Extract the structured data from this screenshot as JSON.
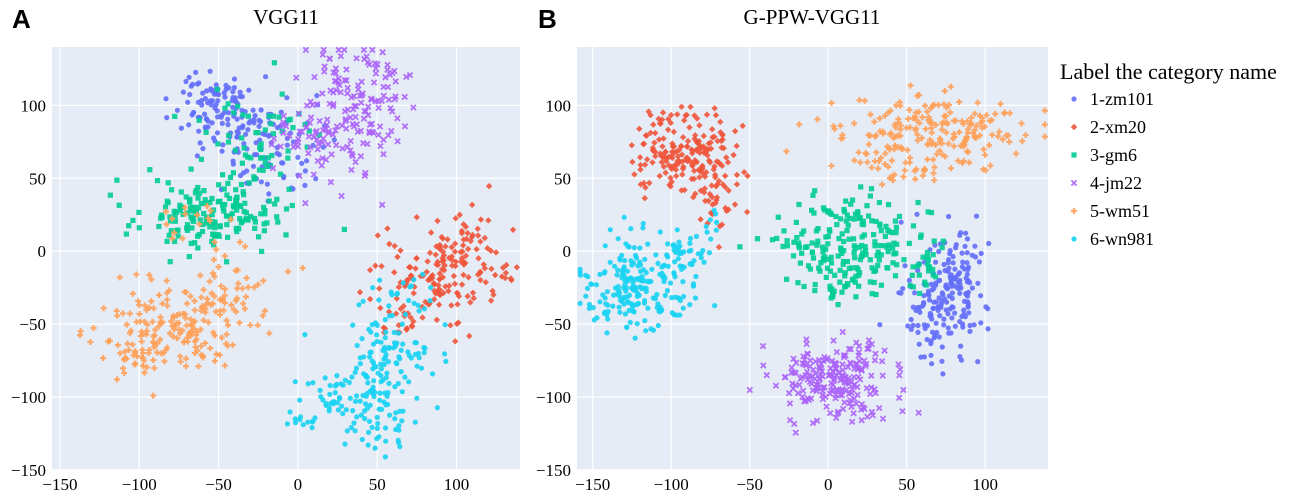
{
  "figure": {
    "background": "#ffffff",
    "plot_bg": "#e5ecf6",
    "grid_color": "#ffffff"
  },
  "legend": {
    "title": "Label the category name",
    "placement": "top-right",
    "items": [
      {
        "label": "1-zm101",
        "color": "#636efa",
        "marker": "circle"
      },
      {
        "label": "2-xm20",
        "color": "#ef553b",
        "marker": "diamond"
      },
      {
        "label": "3-gm6",
        "color": "#00cc96",
        "marker": "square"
      },
      {
        "label": "4-jm22",
        "color": "#ab63fa",
        "marker": "x"
      },
      {
        "label": "5-wm51",
        "color": "#ffa15a",
        "marker": "cross"
      },
      {
        "label": "6-wn981",
        "color": "#19d3f3",
        "marker": "circle"
      }
    ]
  },
  "chart_data": [
    {
      "panel": "A",
      "type": "scatter",
      "title": "VGG11",
      "xlabel": "",
      "ylabel": "",
      "xlim": [
        -155,
        140
      ],
      "ylim": [
        -150,
        140
      ],
      "xticks": [
        -150,
        -100,
        -50,
        0,
        50,
        100
      ],
      "yticks": [
        -150,
        -100,
        -50,
        0,
        50,
        100
      ],
      "xtick_labels": [
        "−150",
        "−100",
        "−50",
        "0",
        "50",
        "100"
      ],
      "ytick_labels": [
        "−150",
        "−100",
        "−50",
        "0",
        "50",
        "100"
      ],
      "grid": true,
      "series": [
        {
          "name": "1-zm101",
          "clusters": [
            {
              "x": -52,
              "y": 100,
              "sx": 12,
              "sy": 12,
              "n": 90
            },
            {
              "x": -28,
              "y": 78,
              "sx": 18,
              "sy": 14,
              "n": 70
            },
            {
              "x": -10,
              "y": 58,
              "sx": 14,
              "sy": 12,
              "n": 30
            }
          ]
        },
        {
          "name": "2-xm20",
          "clusters": [
            {
              "x": 100,
              "y": -10,
              "sx": 16,
              "sy": 18,
              "n": 120
            },
            {
              "x": 72,
              "y": -18,
              "sx": 14,
              "sy": 16,
              "n": 60
            },
            {
              "x": 65,
              "y": -48,
              "sx": 8,
              "sy": 8,
              "n": 15
            }
          ]
        },
        {
          "name": "3-gm6",
          "clusters": [
            {
              "x": -60,
              "y": 25,
              "sx": 22,
              "sy": 12,
              "n": 160
            },
            {
              "x": -22,
              "y": 55,
              "sx": 16,
              "sy": 22,
              "n": 50
            },
            {
              "x": -25,
              "y": 90,
              "sx": 20,
              "sy": 14,
              "n": 25
            }
          ]
        },
        {
          "name": "4-jm22",
          "clusters": [
            {
              "x": 35,
              "y": 100,
              "sx": 18,
              "sy": 22,
              "n": 150
            },
            {
              "x": 5,
              "y": 75,
              "sx": 12,
              "sy": 12,
              "n": 40
            }
          ]
        },
        {
          "name": "5-wm51",
          "clusters": [
            {
              "x": -75,
              "y": -52,
              "sx": 20,
              "sy": 15,
              "n": 160
            },
            {
              "x": -100,
              "y": -75,
              "sx": 8,
              "sy": 7,
              "n": 30
            },
            {
              "x": -40,
              "y": -30,
              "sx": 15,
              "sy": 12,
              "n": 40
            },
            {
              "x": -60,
              "y": 20,
              "sx": 20,
              "sy": 12,
              "n": 20
            }
          ]
        },
        {
          "name": "6-wn981",
          "clusters": [
            {
              "x": 55,
              "y": -75,
              "sx": 14,
              "sy": 18,
              "n": 110
            },
            {
              "x": 50,
              "y": -115,
              "sx": 10,
              "sy": 12,
              "n": 50
            },
            {
              "x": 22,
              "y": -100,
              "sx": 10,
              "sy": 8,
              "n": 35
            },
            {
              "x": 5,
              "y": -115,
              "sx": 5,
              "sy": 4,
              "n": 12
            },
            {
              "x": 65,
              "y": -35,
              "sx": 8,
              "sy": 12,
              "n": 20
            }
          ]
        }
      ]
    },
    {
      "panel": "B",
      "type": "scatter",
      "title": "G-PPW-VGG11",
      "xlabel": "",
      "ylabel": "",
      "xlim": [
        -160,
        140
      ],
      "ylim": [
        -150,
        140
      ],
      "xticks": [
        -150,
        -100,
        -50,
        0,
        50,
        100
      ],
      "yticks": [
        -150,
        -100,
        -50,
        0,
        50,
        100
      ],
      "xtick_labels": [
        "−150",
        "−100",
        "−50",
        "0",
        "50",
        "100"
      ],
      "ytick_labels": [
        "−150",
        "−100",
        "−50",
        "0",
        "50",
        "100"
      ],
      "grid": true,
      "series": [
        {
          "name": "1-zm101",
          "clusters": [
            {
              "x": 72,
              "y": -33,
              "sx": 14,
              "sy": 20,
              "n": 170
            },
            {
              "x": 85,
              "y": -10,
              "sx": 8,
              "sy": 12,
              "n": 30
            }
          ]
        },
        {
          "name": "2-xm20",
          "clusters": [
            {
              "x": -90,
              "y": 68,
              "sx": 16,
              "sy": 16,
              "n": 190
            },
            {
              "x": -70,
              "y": 30,
              "sx": 8,
              "sy": 12,
              "n": 30
            }
          ]
        },
        {
          "name": "3-gm6",
          "clusters": [
            {
              "x": 15,
              "y": 5,
              "sx": 22,
              "sy": 15,
              "n": 190
            },
            {
              "x": 60,
              "y": -10,
              "sx": 8,
              "sy": 10,
              "n": 25
            },
            {
              "x": 10,
              "y": -28,
              "sx": 10,
              "sy": 6,
              "n": 20
            }
          ]
        },
        {
          "name": "4-jm22",
          "clusters": [
            {
              "x": 5,
              "y": -88,
              "sx": 20,
              "sy": 14,
              "n": 210
            }
          ]
        },
        {
          "name": "5-wm51",
          "clusters": [
            {
              "x": 65,
              "y": 82,
              "sx": 30,
              "sy": 12,
              "n": 210
            },
            {
              "x": 45,
              "y": 55,
              "sx": 15,
              "sy": 5,
              "n": 20
            }
          ]
        },
        {
          "name": "6-wn981",
          "clusters": [
            {
              "x": -122,
              "y": -25,
              "sx": 16,
              "sy": 15,
              "n": 200
            },
            {
              "x": -90,
              "y": 0,
              "sx": 8,
              "sy": 8,
              "n": 35
            },
            {
              "x": -75,
              "y": 20,
              "sx": 4,
              "sy": 6,
              "n": 8
            }
          ]
        }
      ]
    }
  ]
}
